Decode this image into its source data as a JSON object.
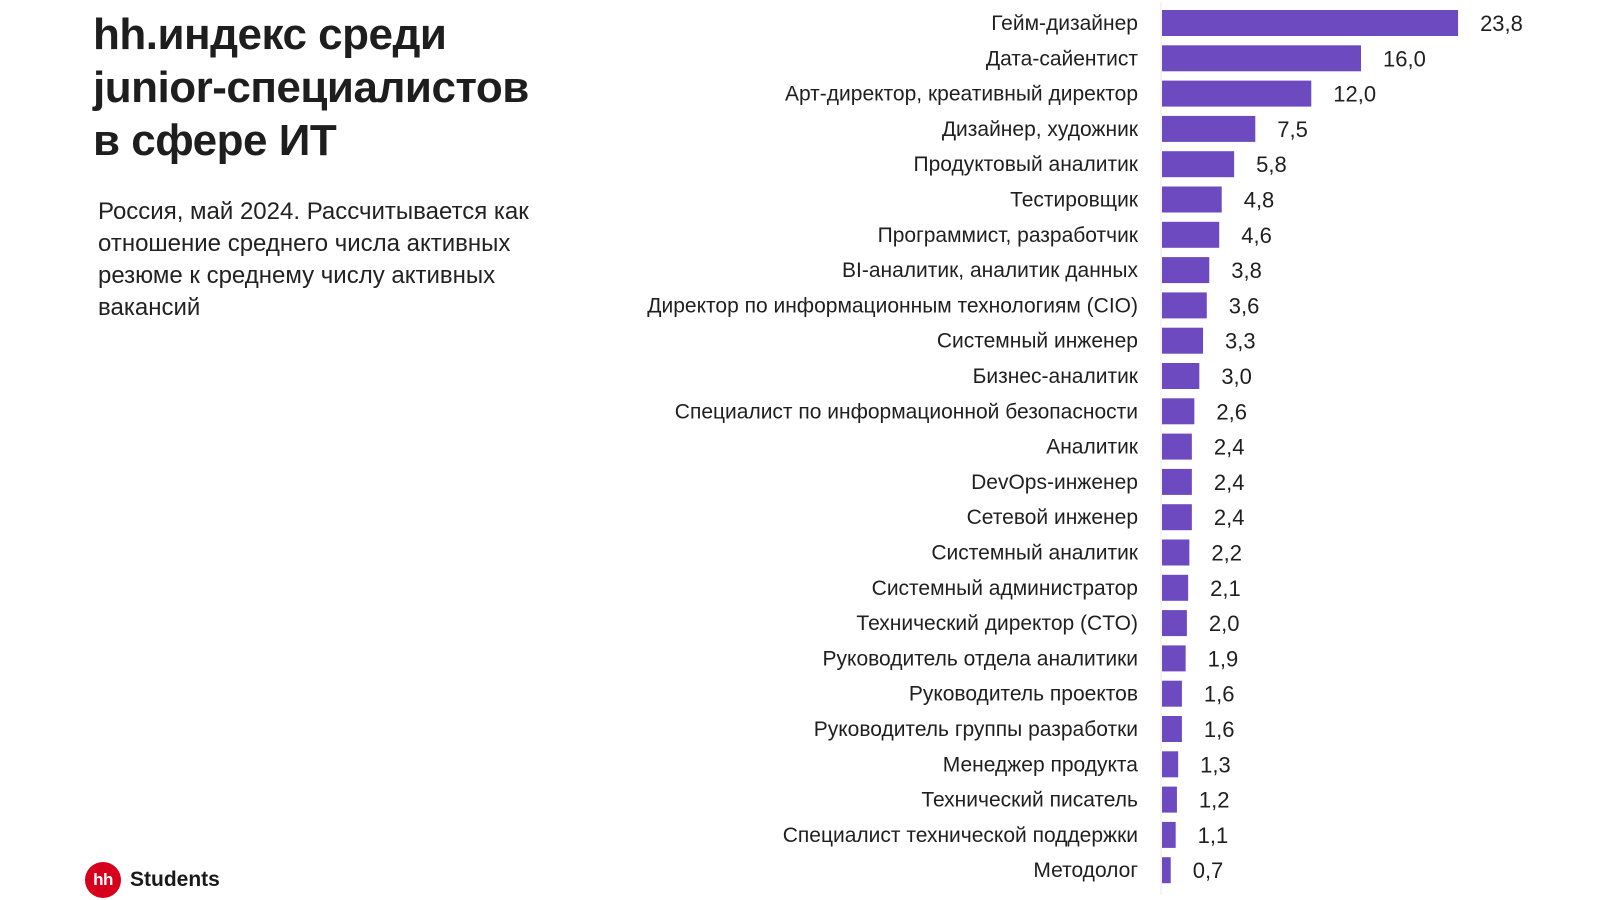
{
  "title": "hh.индекс среди junior-специалистов в сфере ИТ",
  "subtitle": "Россия, май 2024. Рассчитывается как отношение среднего числа активных резюме к среднему числу активных вакансий",
  "logo": {
    "badge": "hh",
    "text": "Students"
  },
  "colors": {
    "bar": "#6d4abf",
    "axis": "#e8e8e8"
  },
  "chart_data": {
    "type": "bar",
    "orientation": "horizontal",
    "categories": [
      "Гейм-дизайнер",
      "Дата-сайентист",
      "Арт-директор, креативный директор",
      "Дизайнер, художник",
      "Продуктовый аналитик",
      "Тестировщик",
      "Программист, разработчик",
      "BI-аналитик, аналитик данных",
      "Директор по информационным технологиям (CIO)",
      "Системный инженер",
      "Бизнес-аналитик",
      "Специалист по информационной безопасности",
      "Аналитик",
      "DevOps-инженер",
      "Сетевой инженер",
      "Системный аналитик",
      "Системный администратор",
      "Технический директор (CTO)",
      "Руководитель отдела аналитики",
      "Руководитель проектов",
      "Руководитель группы разработки",
      "Менеджер продукта",
      "Технический писатель",
      "Специалист технической поддержки",
      "Методолог"
    ],
    "values": [
      23.8,
      16.0,
      12.0,
      7.5,
      5.8,
      4.8,
      4.6,
      3.8,
      3.6,
      3.3,
      3.0,
      2.6,
      2.4,
      2.4,
      2.4,
      2.2,
      2.1,
      2.0,
      1.9,
      1.6,
      1.6,
      1.3,
      1.2,
      1.1,
      0.7
    ],
    "value_labels": [
      "23,8",
      "16,0",
      "12,0",
      "7,5",
      "5,8",
      "4,8",
      "4,6",
      "3,8",
      "3,6",
      "3,3",
      "3,0",
      "2,6",
      "2,4",
      "2,4",
      "2,4",
      "2,2",
      "2,1",
      "2,0",
      "1,9",
      "1,6",
      "1,6",
      "1,3",
      "1,2",
      "1,1",
      "0,7"
    ],
    "xlim": [
      0,
      25
    ],
    "grid": false,
    "legend": false
  }
}
